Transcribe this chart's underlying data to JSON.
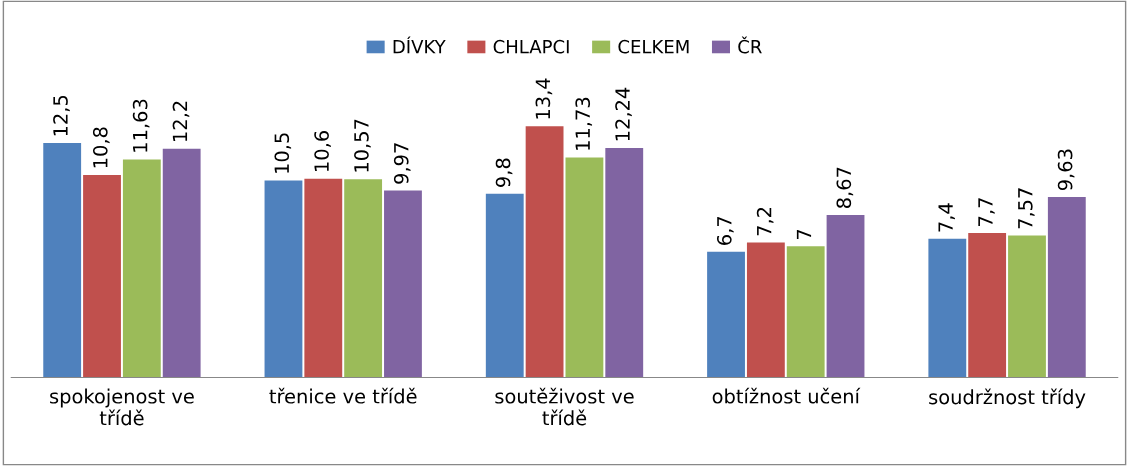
{
  "chart_data": {
    "type": "bar",
    "categories": [
      "spokojenost ve\ntřídě",
      "třenice ve třídě",
      "soutěživost ve\ntřídě",
      "obtížnost učení",
      "soudržnost třídy"
    ],
    "series": [
      {
        "name": "DÍVKY",
        "color": "#4f81bd",
        "values": [
          12.5,
          10.5,
          9.8,
          6.7,
          7.4
        ],
        "value_labels": [
          "12,5",
          "10,5",
          "9,8",
          "6,7",
          "7,4"
        ]
      },
      {
        "name": "CHLAPCI",
        "color": "#c0504d",
        "values": [
          10.8,
          10.6,
          13.4,
          7.2,
          7.7
        ],
        "value_labels": [
          "10,8",
          "10,6",
          "13,4",
          "7,2",
          "7,7"
        ]
      },
      {
        "name": "CELKEM",
        "color": "#9bbb59",
        "values": [
          11.63,
          10.57,
          11.73,
          7,
          7.57
        ],
        "value_labels": [
          "11,63",
          "10,57",
          "11,73",
          "7",
          "7,57"
        ]
      },
      {
        "name": "ČR",
        "color": "#8064a2",
        "values": [
          12.2,
          9.97,
          12.24,
          8.67,
          9.63
        ],
        "value_labels": [
          "12,2",
          "9,97",
          "12,24",
          "8,67",
          "9,63"
        ]
      }
    ],
    "tick_labels": "x",
    "legend": "top",
    "grid": false
  }
}
